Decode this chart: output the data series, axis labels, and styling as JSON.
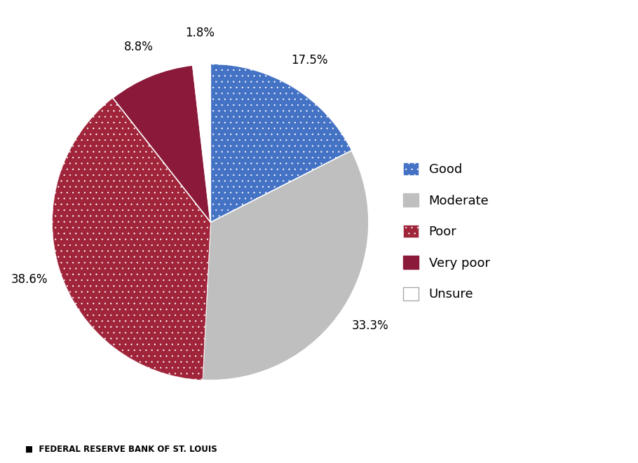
{
  "labels": [
    "Good",
    "Moderate",
    "Poor",
    "Very poor",
    "Unsure"
  ],
  "values": [
    17.5,
    33.3,
    38.6,
    8.8,
    1.8
  ],
  "colors": [
    "#4472C4",
    "#BFBFBF",
    "#A0243A",
    "#8B1A3A",
    "#FFFFFF"
  ],
  "hatch": [
    "..",
    "",
    "..",
    "",
    ""
  ],
  "edge_colors": [
    "#4472C4",
    "#BFBFBF",
    "#A0243A",
    "#8B1A3A",
    "#AAAAAA"
  ],
  "pct_labels": [
    "17.5%",
    "33.3%",
    "38.6%",
    "8.8%",
    "1.8%"
  ],
  "legend_labels": [
    "Good",
    "Moderate",
    "Poor",
    "Very poor",
    "Unsure"
  ],
  "footer_text": "FEDERAL RESERVE BANK OF ST. LOUIS",
  "background_color": "#FFFFFF",
  "startangle": 90,
  "figsize": [
    9.1,
    6.61
  ],
  "dpi": 100
}
